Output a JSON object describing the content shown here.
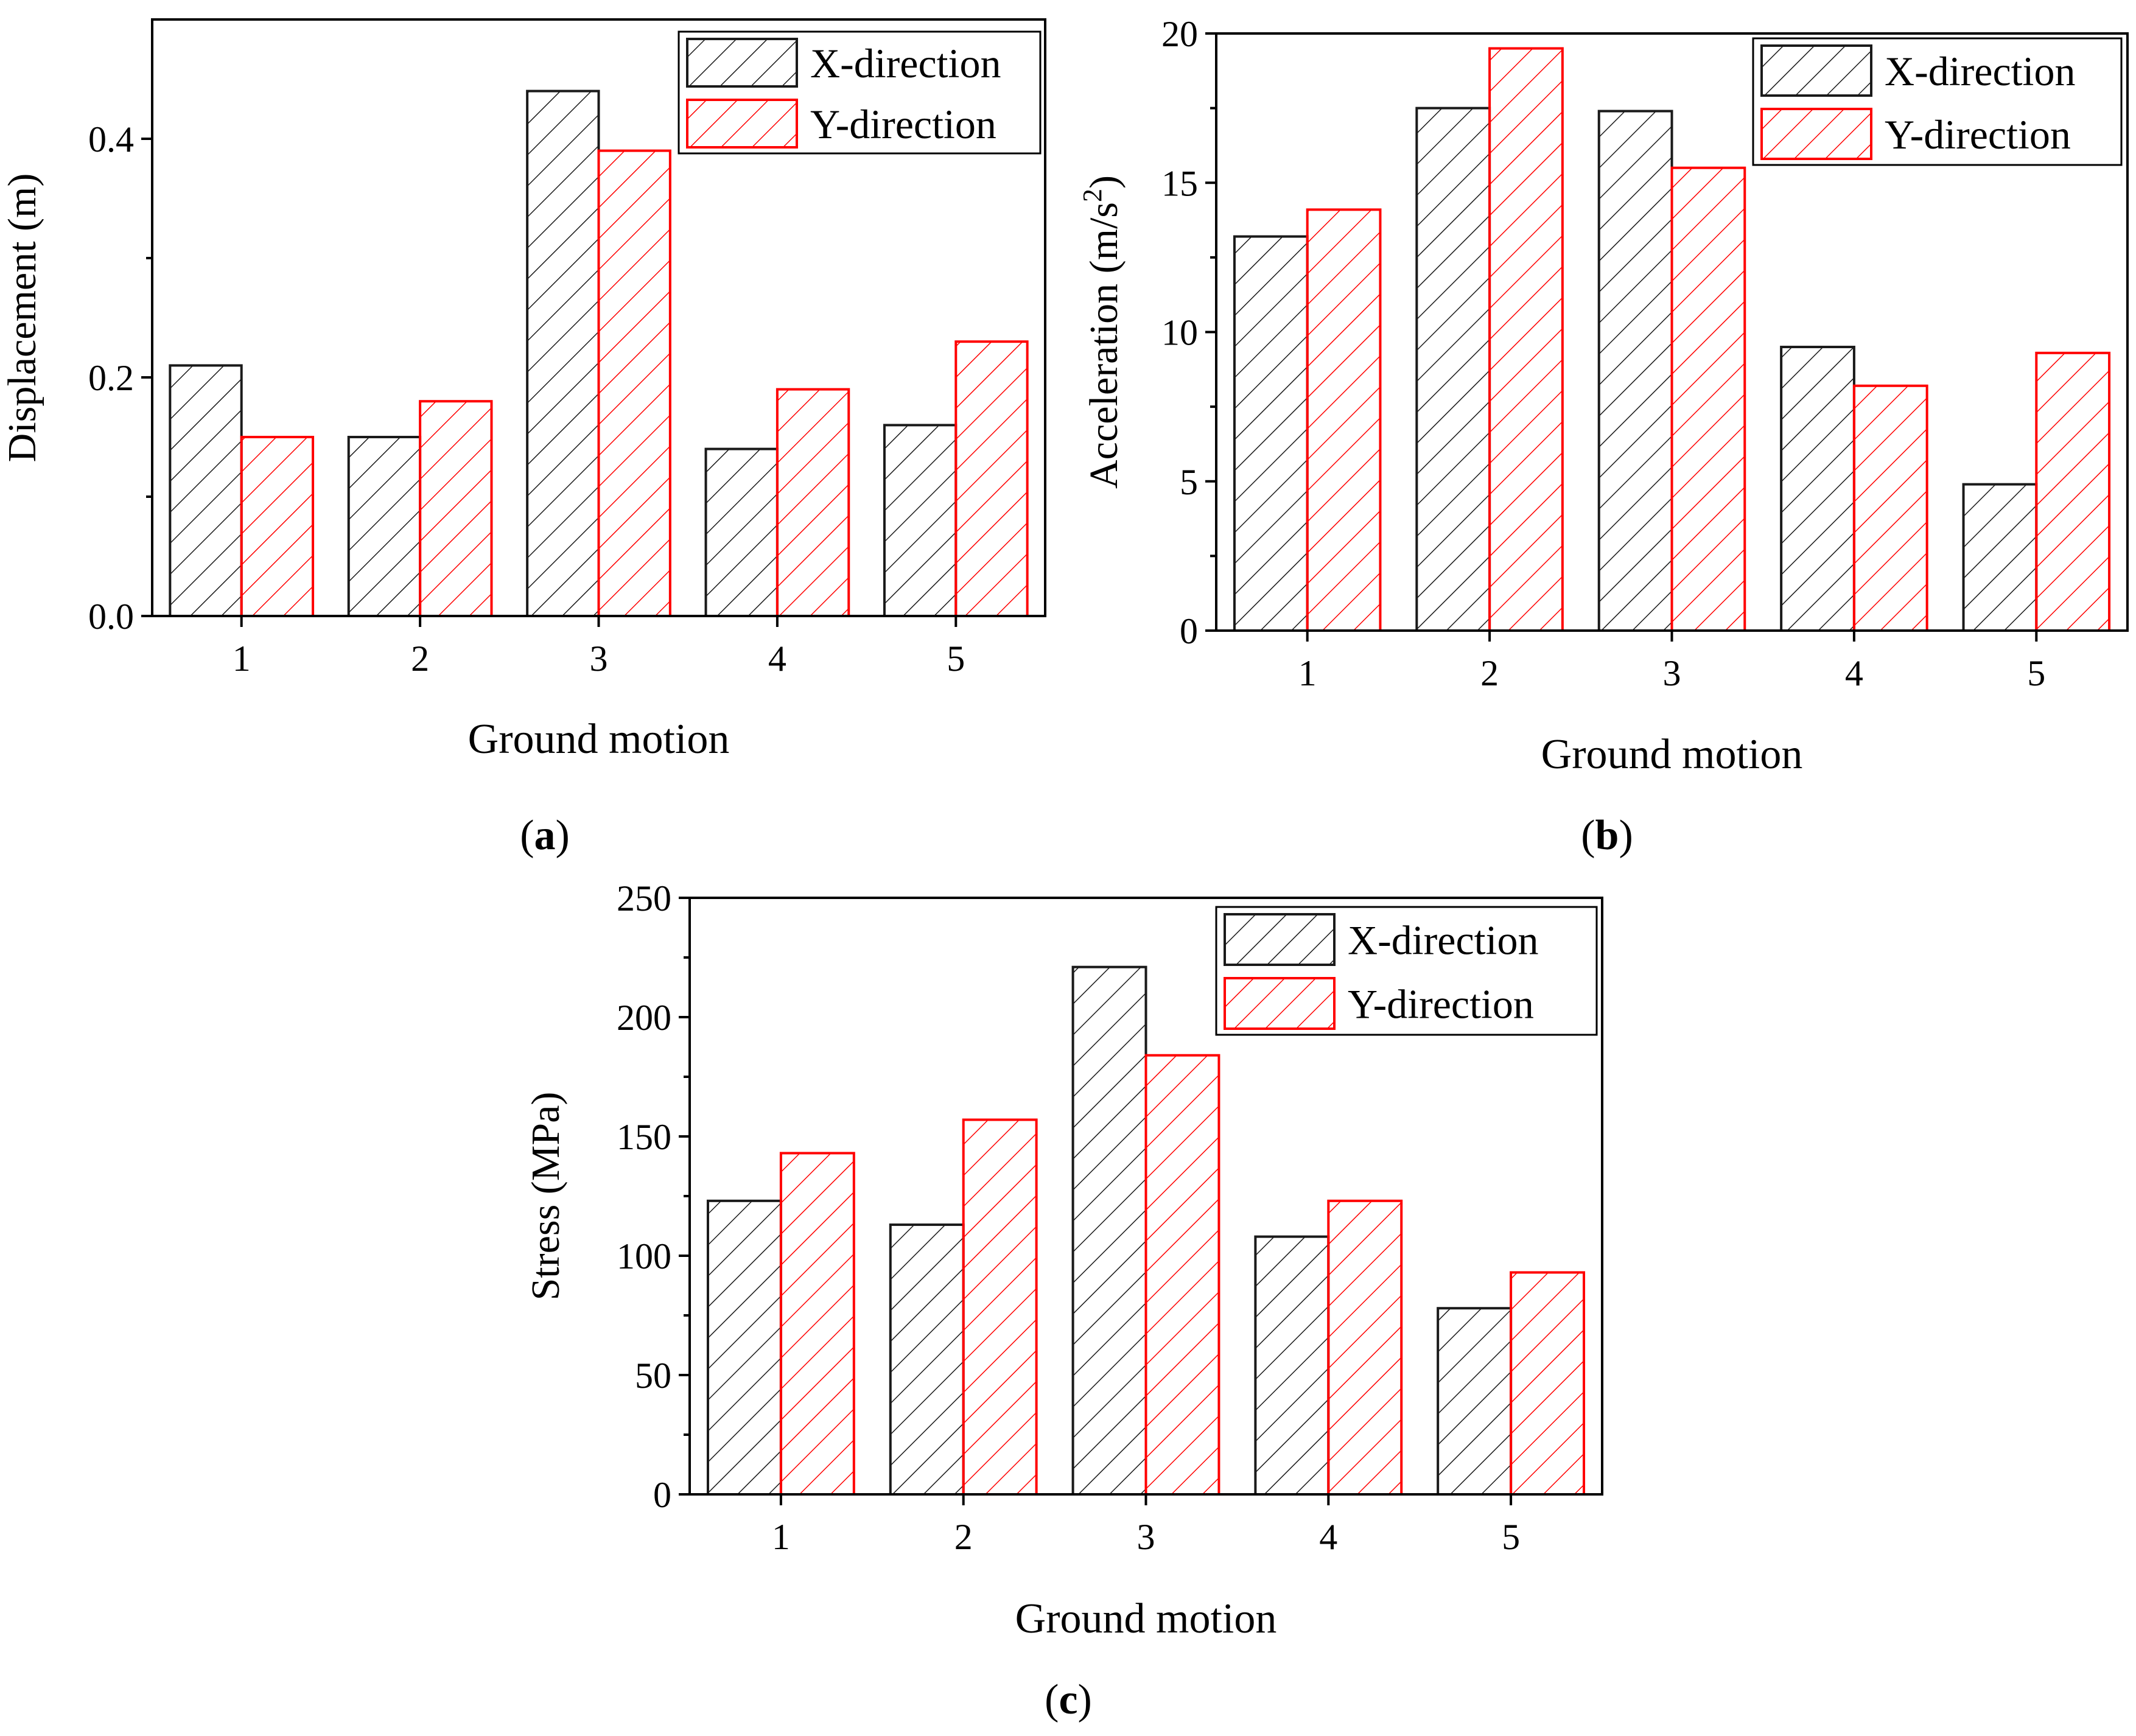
{
  "colors": {
    "x_series": "#1a1a1a",
    "y_series": "#ff0000",
    "axis": "#000000",
    "background": "#ffffff"
  },
  "chart_data": [
    {
      "id": "a",
      "type": "bar",
      "panel_label": "a",
      "title": "",
      "xlabel": "Ground motion",
      "ylabel": "Displacement (m)",
      "categories": [
        "1",
        "2",
        "3",
        "4",
        "5"
      ],
      "series": [
        {
          "name": "X-direction",
          "values": [
            0.21,
            0.15,
            0.44,
            0.14,
            0.16
          ]
        },
        {
          "name": "Y-direction",
          "values": [
            0.15,
            0.18,
            0.39,
            0.19,
            0.23
          ]
        }
      ],
      "ylim": [
        0,
        0.5
      ],
      "yticks": [
        0.0,
        0.2,
        0.4
      ],
      "ytick_labels": [
        "0.0",
        "0.2",
        "0.4"
      ],
      "legend": "top-right",
      "grid": false
    },
    {
      "id": "b",
      "type": "bar",
      "panel_label": "b",
      "title": "",
      "xlabel": "Ground motion",
      "ylabel": "Acceleration (m/s",
      "ylabel_sup": "2",
      "ylabel_tail": ")",
      "categories": [
        "1",
        "2",
        "3",
        "4",
        "5"
      ],
      "series": [
        {
          "name": "X-direction",
          "values": [
            13.2,
            17.5,
            17.4,
            9.5,
            4.9
          ]
        },
        {
          "name": "Y-direction",
          "values": [
            14.1,
            19.5,
            15.5,
            8.2,
            9.3
          ]
        }
      ],
      "ylim": [
        0,
        20
      ],
      "yticks": [
        0,
        5,
        10,
        15,
        20
      ],
      "ytick_labels": [
        "0",
        "5",
        "10",
        "15",
        "20"
      ],
      "legend": "top-right",
      "grid": false
    },
    {
      "id": "c",
      "type": "bar",
      "panel_label": "c",
      "title": "",
      "xlabel": "Ground motion",
      "ylabel": "Stress (MPa)",
      "categories": [
        "1",
        "2",
        "3",
        "4",
        "5"
      ],
      "series": [
        {
          "name": "X-direction",
          "values": [
            123,
            113,
            221,
            108,
            78
          ]
        },
        {
          "name": "Y-direction",
          "values": [
            143,
            157,
            184,
            123,
            93
          ]
        }
      ],
      "ylim": [
        0,
        250
      ],
      "yticks": [
        0,
        50,
        100,
        150,
        200,
        250
      ],
      "ytick_labels": [
        "0",
        "50",
        "100",
        "150",
        "200",
        "250"
      ],
      "legend": "top-right",
      "grid": false
    }
  ]
}
